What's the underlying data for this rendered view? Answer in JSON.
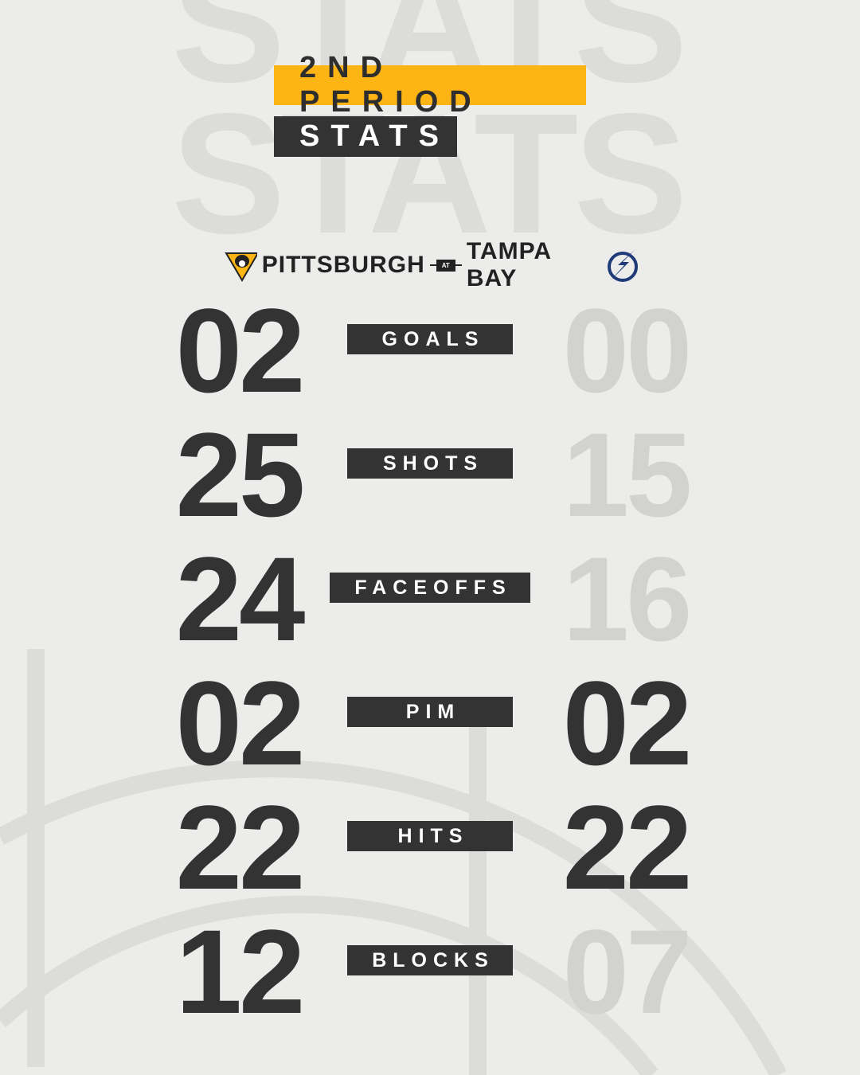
{
  "header": {
    "period": "2ND PERIOD",
    "title": "STATS",
    "watermark": "STATS"
  },
  "matchup": {
    "home": "PITTSBURGH",
    "separator": "AT",
    "away": "TAMPA BAY"
  },
  "colors": {
    "accent": "#fcb514",
    "dark": "#333333",
    "muted": "#d2d2d1",
    "background": "#ececeb",
    "lightning": "#1e3a78"
  },
  "stats": [
    {
      "label": "GOALS",
      "pittsburgh": "02",
      "tampa_bay": "00",
      "tampa_bay_highlight": false
    },
    {
      "label": "SHOTS",
      "pittsburgh": "25",
      "tampa_bay": "15",
      "tampa_bay_highlight": false
    },
    {
      "label": "FACEOFFS",
      "pittsburgh": "24",
      "tampa_bay": "16",
      "tampa_bay_highlight": false
    },
    {
      "label": "PIM",
      "pittsburgh": "02",
      "tampa_bay": "02",
      "tampa_bay_highlight": true
    },
    {
      "label": "HITS",
      "pittsburgh": "22",
      "tampa_bay": "22",
      "tampa_bay_highlight": true
    },
    {
      "label": "BLOCKS",
      "pittsburgh": "12",
      "tampa_bay": "07",
      "tampa_bay_highlight": false
    }
  ]
}
